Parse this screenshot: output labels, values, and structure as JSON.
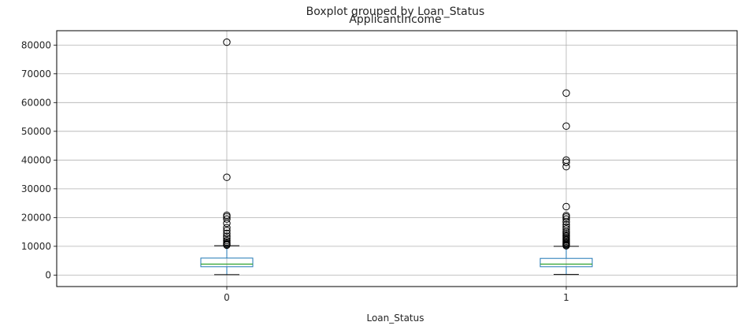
{
  "chart_data": {
    "type": "boxplot",
    "suptitle": "Boxplot grouped by Loan_Status",
    "title": "ApplicantIncome",
    "xlabel": "Loan_Status",
    "ylabel": "",
    "categories": [
      "0",
      "1"
    ],
    "ylim": [
      -4000,
      85000
    ],
    "yticks": [
      0,
      10000,
      20000,
      30000,
      40000,
      50000,
      60000,
      70000,
      80000
    ],
    "ytick_labels": [
      "0",
      "10000",
      "20000",
      "30000",
      "40000",
      "50000",
      "60000",
      "70000",
      "80000"
    ],
    "grid": true,
    "boxes": [
      {
        "category": "0",
        "whisker_low": 150,
        "q1": 2900,
        "median": 3800,
        "q3": 5900,
        "whisker_high": 10200,
        "outliers": [
          10400,
          10700,
          11000,
          11500,
          12000,
          12800,
          13500,
          14500,
          15500,
          16500,
          18000,
          19500,
          20300,
          20800,
          34000,
          81000
        ]
      },
      {
        "category": "1",
        "whisker_low": 200,
        "q1": 2900,
        "median": 3800,
        "q3": 5800,
        "whisker_high": 10000,
        "outliers": [
          10200,
          10500,
          10800,
          11100,
          11400,
          11800,
          12200,
          12600,
          13000,
          13500,
          14000,
          14600,
          15200,
          16000,
          16700,
          17500,
          18500,
          19500,
          20200,
          20700,
          23800,
          37700,
          39200,
          40000,
          51800,
          63300
        ]
      }
    ],
    "colors": {
      "box": "#1f77b4",
      "whisker": "#1f77b4",
      "median": "#2ca02c",
      "outlier_edge": "#000000",
      "grid": "#b0b0b0",
      "frame": "#000000"
    }
  }
}
